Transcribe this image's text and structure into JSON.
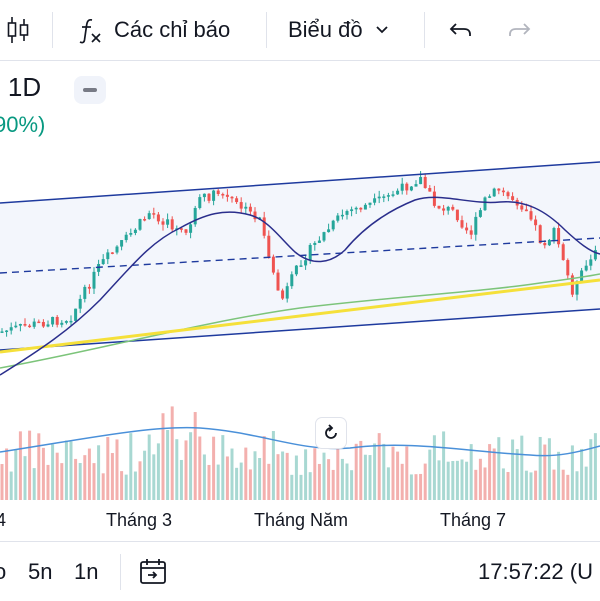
{
  "toolbar": {
    "candles_icon": "candlestick-icon",
    "indicators_icon": "fx-icon",
    "indicators_label": "Các chỉ báo",
    "chart_type_label": "Biểu đồ",
    "undo_icon": "undo-icon",
    "redo_icon": "redo-icon"
  },
  "legend": {
    "symbol_interval": "· 1D",
    "change": "90%)"
  },
  "time_axis": {
    "labels": [
      "4",
      "Tháng 3",
      "Tháng Năm",
      "Tháng 7"
    ]
  },
  "bottom_bar": {
    "ranges": [
      "o",
      "5n",
      "1n"
    ],
    "goto_icon": "calendar-goto-icon",
    "clock": "17:57:22 (U"
  },
  "colors": {
    "up": "#26a69a",
    "down": "#ef5350",
    "channel": "#1e3a9e",
    "ma_short": "#2a2e8c",
    "ma_long": "#7cc47a",
    "trendline": "#f5e03a",
    "volume_ma": "#4a90d9",
    "change_text": "#089981"
  }
}
